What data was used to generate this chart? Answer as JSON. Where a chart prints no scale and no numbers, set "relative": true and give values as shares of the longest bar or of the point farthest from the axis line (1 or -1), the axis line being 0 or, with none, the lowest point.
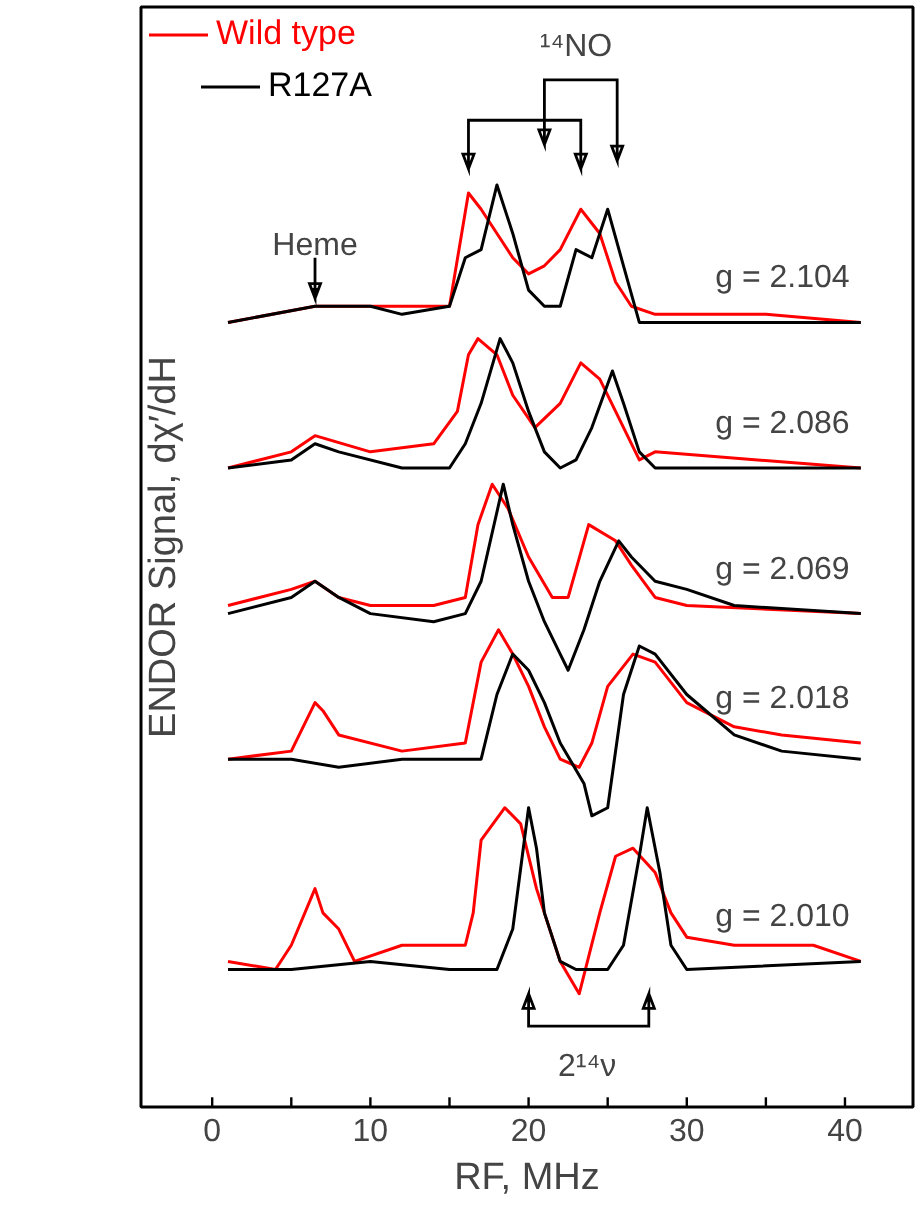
{
  "chart_data": {
    "type": "line",
    "relative": true,
    "xlabel": "RF, MHz",
    "ylabel": "ENDOR Signal, dχ′/dH",
    "xlim": [
      -4.5,
      44.3
    ],
    "xticks": [
      0,
      10,
      20,
      30,
      40
    ],
    "grid": false,
    "legend": "top left",
    "line_style": "solid",
    "marker": "none",
    "series": [
      {
        "name": "Wild type",
        "color": "#ff0000",
        "x": [
          1,
          6.5,
          12,
          15,
          16.2,
          17,
          18,
          19,
          20,
          21,
          22,
          23.3,
          24.5,
          25.5,
          26.5,
          28,
          35,
          41
        ],
        "values": [
          0.83,
          0.85,
          0.85,
          0.85,
          0.99,
          0.97,
          0.94,
          0.91,
          0.89,
          0.9,
          0.92,
          0.97,
          0.94,
          0.88,
          0.85,
          0.84,
          0.84,
          0.83
        ]
      },
      {
        "name": "R127A",
        "color": "#000000",
        "x": [
          1,
          6.5,
          10,
          12,
          15,
          16,
          17,
          18,
          19,
          20,
          21,
          22,
          23,
          24,
          25,
          26,
          27,
          28,
          41
        ],
        "values": [
          0.83,
          0.85,
          0.85,
          0.84,
          0.85,
          0.91,
          0.92,
          1.0,
          0.94,
          0.87,
          0.85,
          0.85,
          0.92,
          0.91,
          0.97,
          0.9,
          0.83,
          0.83,
          0.83
        ]
      },
      {
        "color": "#ff0000",
        "x": [
          1,
          5,
          6.5,
          10,
          14,
          15.5,
          16.2,
          16.8,
          18,
          19,
          20.4,
          22,
          23.3,
          24.5,
          25.5,
          27,
          28,
          41
        ],
        "values": [
          0.65,
          0.67,
          0.69,
          0.67,
          0.68,
          0.72,
          0.79,
          0.81,
          0.79,
          0.74,
          0.7,
          0.73,
          0.78,
          0.76,
          0.72,
          0.66,
          0.67,
          0.65
        ]
      },
      {
        "color": "#000000",
        "x": [
          1,
          5,
          6.5,
          8,
          12,
          15,
          16,
          17,
          18.2,
          19,
          20,
          21,
          22,
          23,
          24,
          25.3,
          26,
          27,
          28,
          41
        ],
        "values": [
          0.65,
          0.66,
          0.68,
          0.67,
          0.65,
          0.65,
          0.68,
          0.73,
          0.81,
          0.78,
          0.72,
          0.67,
          0.65,
          0.66,
          0.7,
          0.77,
          0.73,
          0.67,
          0.65,
          0.65
        ]
      },
      {
        "color": "#ff0000",
        "x": [
          1,
          5,
          6.5,
          8,
          10,
          14,
          16,
          16.8,
          17.7,
          18.7,
          20,
          21.5,
          22.5,
          23.8,
          25.5,
          26.5,
          28,
          30,
          41
        ],
        "values": [
          0.48,
          0.5,
          0.51,
          0.49,
          0.48,
          0.48,
          0.49,
          0.58,
          0.63,
          0.6,
          0.54,
          0.49,
          0.49,
          0.58,
          0.56,
          0.53,
          0.49,
          0.48,
          0.47
        ]
      },
      {
        "color": "#000000",
        "x": [
          1,
          5,
          6.5,
          8,
          10,
          14,
          16,
          17,
          18.4,
          19,
          20,
          21,
          22,
          22.5,
          23.5,
          24.5,
          25.7,
          26.5,
          28,
          30,
          33,
          41
        ],
        "values": [
          0.47,
          0.49,
          0.51,
          0.49,
          0.47,
          0.46,
          0.47,
          0.51,
          0.63,
          0.58,
          0.51,
          0.46,
          0.42,
          0.4,
          0.45,
          0.51,
          0.56,
          0.54,
          0.51,
          0.5,
          0.48,
          0.47
        ]
      },
      {
        "color": "#ff0000",
        "x": [
          1,
          5,
          6.5,
          7,
          8,
          12,
          16,
          17,
          18.1,
          19,
          20,
          21,
          22,
          23.2,
          24,
          25,
          26.6,
          28,
          30,
          33,
          36,
          41
        ],
        "values": [
          0.29,
          0.3,
          0.36,
          0.35,
          0.32,
          0.3,
          0.31,
          0.41,
          0.45,
          0.42,
          0.38,
          0.33,
          0.29,
          0.28,
          0.31,
          0.38,
          0.42,
          0.41,
          0.36,
          0.33,
          0.32,
          0.31
        ]
      },
      {
        "color": "#000000",
        "x": [
          1,
          5,
          8,
          12,
          15,
          17,
          18,
          19,
          20,
          21,
          22,
          23.5,
          24,
          25,
          26,
          27,
          28,
          30,
          33,
          36,
          41
        ],
        "values": [
          0.29,
          0.29,
          0.28,
          0.29,
          0.29,
          0.29,
          0.37,
          0.42,
          0.4,
          0.36,
          0.31,
          0.26,
          0.22,
          0.23,
          0.37,
          0.43,
          0.42,
          0.37,
          0.32,
          0.3,
          0.29
        ]
      },
      {
        "color": "#ff0000",
        "x": [
          1,
          4,
          5,
          6.5,
          7,
          8,
          9,
          12,
          16,
          16.5,
          17,
          18.5,
          19.5,
          20.5,
          22,
          23.2,
          24.5,
          25.5,
          26.6,
          28,
          29,
          30,
          33,
          38,
          41
        ],
        "values": [
          0.04,
          0.03,
          0.06,
          0.13,
          0.1,
          0.08,
          0.04,
          0.06,
          0.06,
          0.1,
          0.19,
          0.23,
          0.21,
          0.13,
          0.04,
          0.0,
          0.1,
          0.17,
          0.18,
          0.15,
          0.1,
          0.07,
          0.06,
          0.06,
          0.04
        ]
      },
      {
        "color": "#000000",
        "x": [
          1,
          5,
          10,
          15,
          18,
          19,
          20,
          20.5,
          21,
          22,
          23,
          25,
          26,
          27,
          27.5,
          28.3,
          29,
          30,
          41
        ],
        "values": [
          0.03,
          0.03,
          0.04,
          0.03,
          0.03,
          0.08,
          0.23,
          0.18,
          0.1,
          0.04,
          0.03,
          0.03,
          0.06,
          0.17,
          0.23,
          0.15,
          0.06,
          0.03,
          0.04
        ]
      }
    ],
    "annotations": [
      "g = 2.104",
      "g = 2.086",
      "g = 2.069",
      "g = 2.018",
      "g = 2.010",
      {
        "text": "Heme",
        "x": 6.5,
        "y": 0.85
      },
      "¹⁴NO",
      "2¹⁴ν"
    ]
  }
}
